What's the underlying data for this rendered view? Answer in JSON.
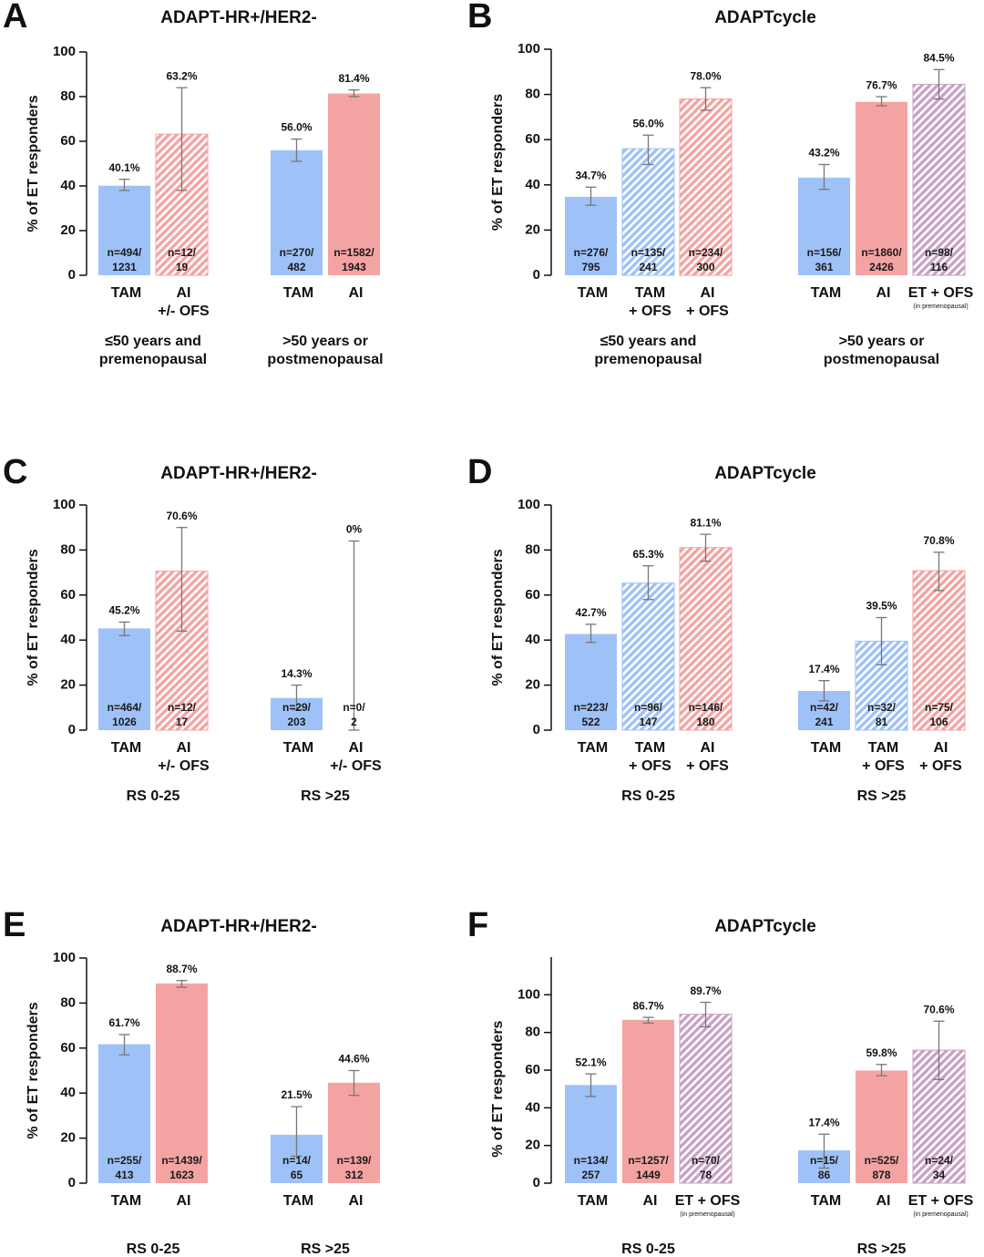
{
  "chart_data": [
    {
      "type": "bar",
      "panel": "A",
      "title": "ADAPT-HR+/HER2-",
      "ylabel": "% of ET responders",
      "ylim": [
        0,
        100
      ],
      "yticks": [
        0,
        20,
        40,
        60,
        80,
        100
      ],
      "groups": [
        {
          "label": [
            "≤50 years and",
            "premenopausal"
          ],
          "categories": [
            [
              "TAM"
            ],
            [
              "AI",
              "+/- OFS"
            ]
          ],
          "values": [
            40.1,
            63.2
          ],
          "value_labels": [
            "40.1%",
            "63.2%"
          ],
          "error_bars": [
            [
              38,
              43
            ],
            [
              38,
              84
            ]
          ],
          "n_labels": [
            [
              "n=494/",
              "1231"
            ],
            [
              "n=12/",
              "19"
            ]
          ],
          "colors": [
            "#9ec2f7",
            "#f4a3a3"
          ],
          "hatched": [
            false,
            true
          ]
        },
        {
          "label": [
            ">50 years or",
            "postmenopausal"
          ],
          "categories": [
            [
              "TAM"
            ],
            [
              "AI"
            ]
          ],
          "values": [
            56.0,
            81.4
          ],
          "value_labels": [
            "56.0%",
            "81.4%"
          ],
          "error_bars": [
            [
              51,
              61
            ],
            [
              80,
              83
            ]
          ],
          "n_labels": [
            [
              "n=270/",
              "482"
            ],
            [
              "n=1582/",
              "1943"
            ]
          ],
          "colors": [
            "#9ec2f7",
            "#f4a3a3"
          ],
          "hatched": [
            false,
            false
          ]
        }
      ]
    },
    {
      "type": "bar",
      "panel": "B",
      "title": "ADAPTcycle",
      "ylabel": "% of ET responders",
      "ylim": [
        0,
        100
      ],
      "yticks": [
        0,
        20,
        40,
        60,
        80,
        100
      ],
      "groups": [
        {
          "label": [
            "≤50 years and",
            "premenopausal"
          ],
          "categories": [
            [
              "TAM"
            ],
            [
              "TAM",
              "+ OFS"
            ],
            [
              "AI",
              "+ OFS"
            ]
          ],
          "values": [
            34.7,
            56.0,
            78.0
          ],
          "value_labels": [
            "34.7%",
            "56.0%",
            "78.0%"
          ],
          "error_bars": [
            [
              31,
              39
            ],
            [
              49,
              62
            ],
            [
              73,
              83
            ]
          ],
          "n_labels": [
            [
              "n=276/",
              "795"
            ],
            [
              "n=135/",
              "241"
            ],
            [
              "n=234/",
              "300"
            ]
          ],
          "colors": [
            "#9ec2f7",
            "#9ec2f7",
            "#f4a3a3"
          ],
          "hatched": [
            false,
            true,
            true
          ]
        },
        {
          "label": [
            ">50 years or",
            "postmenopausal"
          ],
          "categories": [
            [
              "TAM"
            ],
            [
              "AI"
            ],
            [
              "ET + OFS"
            ]
          ],
          "category_notes": [
            null,
            null,
            "(in premenopausal)"
          ],
          "values": [
            43.2,
            76.7,
            84.5
          ],
          "value_labels": [
            "43.2%",
            "76.7%",
            "84.5%"
          ],
          "error_bars": [
            [
              38,
              49
            ],
            [
              75,
              79
            ],
            [
              78,
              91
            ]
          ],
          "n_labels": [
            [
              "n=156/",
              "361"
            ],
            [
              "n=1860/",
              "2426"
            ],
            [
              "n=98/",
              "116"
            ]
          ],
          "colors": [
            "#9ec2f7",
            "#f4a3a3",
            "#c8a2c4"
          ],
          "hatched": [
            false,
            false,
            true
          ]
        }
      ]
    },
    {
      "type": "bar",
      "panel": "C",
      "title": "ADAPT-HR+/HER2-",
      "ylabel": "% of ET responders",
      "ylim": [
        0,
        100
      ],
      "yticks": [
        0,
        20,
        40,
        60,
        80,
        100
      ],
      "groups": [
        {
          "label": [
            "RS 0-25"
          ],
          "categories": [
            [
              "TAM"
            ],
            [
              "AI",
              "+/- OFS"
            ]
          ],
          "values": [
            45.2,
            70.6
          ],
          "value_labels": [
            "45.2%",
            "70.6%"
          ],
          "error_bars": [
            [
              42,
              48
            ],
            [
              44,
              90
            ]
          ],
          "n_labels": [
            [
              "n=464/",
              "1026"
            ],
            [
              "n=12/",
              "17"
            ]
          ],
          "colors": [
            "#9ec2f7",
            "#f4a3a3"
          ],
          "hatched": [
            false,
            true
          ]
        },
        {
          "label": [
            "RS >25"
          ],
          "categories": [
            [
              "TAM"
            ],
            [
              "AI",
              "+/- OFS"
            ]
          ],
          "values": [
            14.3,
            0
          ],
          "value_labels": [
            "14.3%",
            "0%"
          ],
          "error_bars": [
            [
              9,
              20
            ],
            [
              0,
              84
            ]
          ],
          "n_labels": [
            [
              "n=29/",
              "203"
            ],
            [
              "n=0/",
              "2"
            ]
          ],
          "colors": [
            "#9ec2f7",
            "#f4a3a3"
          ],
          "hatched": [
            false,
            true
          ]
        }
      ]
    },
    {
      "type": "bar",
      "panel": "D",
      "title": "ADAPTcycle",
      "ylabel": "% of ET responders",
      "ylim": [
        0,
        100
      ],
      "yticks": [
        0,
        20,
        40,
        60,
        80,
        100
      ],
      "groups": [
        {
          "label": [
            "RS 0-25"
          ],
          "categories": [
            [
              "TAM"
            ],
            [
              "TAM",
              "+ OFS"
            ],
            [
              "AI",
              "+ OFS"
            ]
          ],
          "values": [
            42.7,
            65.3,
            81.1
          ],
          "value_labels": [
            "42.7%",
            "65.3%",
            "81.1%"
          ],
          "error_bars": [
            [
              39,
              47
            ],
            [
              58,
              73
            ],
            [
              75,
              87
            ]
          ],
          "n_labels": [
            [
              "n=223/",
              "522"
            ],
            [
              "n=96/",
              "147"
            ],
            [
              "n=146/",
              "180"
            ]
          ],
          "colors": [
            "#9ec2f7",
            "#9ec2f7",
            "#f4a3a3"
          ],
          "hatched": [
            false,
            true,
            true
          ]
        },
        {
          "label": [
            "RS >25"
          ],
          "categories": [
            [
              "TAM"
            ],
            [
              "TAM",
              "+ OFS"
            ],
            [
              "AI",
              "+ OFS"
            ]
          ],
          "values": [
            17.4,
            39.5,
            70.8
          ],
          "value_labels": [
            "17.4%",
            "39.5%",
            "70.8%"
          ],
          "error_bars": [
            [
              13,
              22
            ],
            [
              29,
              50
            ],
            [
              62,
              79
            ]
          ],
          "n_labels": [
            [
              "n=42/",
              "241"
            ],
            [
              "n=32/",
              "81"
            ],
            [
              "n=75/",
              "106"
            ]
          ],
          "colors": [
            "#9ec2f7",
            "#9ec2f7",
            "#f4a3a3"
          ],
          "hatched": [
            false,
            true,
            true
          ]
        }
      ]
    },
    {
      "type": "bar",
      "panel": "E",
      "title": "ADAPT-HR+/HER2-",
      "ylabel": "% of ET responders",
      "ylim": [
        0,
        100
      ],
      "yticks": [
        0,
        20,
        40,
        60,
        80,
        100
      ],
      "groups": [
        {
          "label": [
            "RS 0-25"
          ],
          "categories": [
            [
              "TAM"
            ],
            [
              "AI"
            ]
          ],
          "values": [
            61.7,
            88.7
          ],
          "value_labels": [
            "61.7%",
            "88.7%"
          ],
          "error_bars": [
            [
              57,
              66
            ],
            [
              87,
              90
            ]
          ],
          "n_labels": [
            [
              "n=255/",
              "413"
            ],
            [
              "n=1439/",
              "1623"
            ]
          ],
          "colors": [
            "#9ec2f7",
            "#f4a3a3"
          ],
          "hatched": [
            false,
            false
          ]
        },
        {
          "label": [
            "RS >25"
          ],
          "categories": [
            [
              "TAM"
            ],
            [
              "AI"
            ]
          ],
          "values": [
            21.5,
            44.6
          ],
          "value_labels": [
            "21.5%",
            "44.6%"
          ],
          "error_bars": [
            [
              12,
              34
            ],
            [
              39,
              50
            ]
          ],
          "n_labels": [
            [
              "n=14/",
              "65"
            ],
            [
              "n=139/",
              "312"
            ]
          ],
          "colors": [
            "#9ec2f7",
            "#f4a3a3"
          ],
          "hatched": [
            false,
            false
          ]
        }
      ]
    },
    {
      "type": "bar",
      "panel": "F",
      "title": "ADAPTcycle",
      "ylabel": "% of ET responders",
      "ylim": [
        0,
        120
      ],
      "yticks": [
        0,
        20,
        40,
        60,
        80,
        100
      ],
      "groups": [
        {
          "label": [
            "RS 0-25"
          ],
          "categories": [
            [
              "TAM"
            ],
            [
              "AI"
            ],
            [
              "ET + OFS"
            ]
          ],
          "category_notes": [
            null,
            null,
            "(in premenopausal)"
          ],
          "values": [
            52.1,
            86.7,
            89.7
          ],
          "value_labels": [
            "52.1%",
            "86.7%",
            "89.7%"
          ],
          "error_bars": [
            [
              46,
              58
            ],
            [
              85,
              88
            ],
            [
              83,
              96
            ]
          ],
          "n_labels": [
            [
              "n=134/",
              "257"
            ],
            [
              "n=1257/",
              "1449"
            ],
            [
              "n=70/",
              "78"
            ]
          ],
          "colors": [
            "#9ec2f7",
            "#f4a3a3",
            "#c8a2c4"
          ],
          "hatched": [
            false,
            false,
            true
          ]
        },
        {
          "label": [
            "RS >25"
          ],
          "categories": [
            [
              "TAM"
            ],
            [
              "AI"
            ],
            [
              "ET + OFS"
            ]
          ],
          "category_notes": [
            null,
            null,
            "(in premenopausal)"
          ],
          "values": [
            17.4,
            59.8,
            70.6
          ],
          "value_labels": [
            "17.4%",
            "59.8%",
            "70.6%"
          ],
          "error_bars": [
            [
              8,
              26
            ],
            [
              57,
              63
            ],
            [
              55,
              86
            ]
          ],
          "n_labels": [
            [
              "n=15/",
              "86"
            ],
            [
              "n=525/",
              "878"
            ],
            [
              "n=24/",
              "34"
            ]
          ],
          "colors": [
            "#9ec2f7",
            "#f4a3a3",
            "#c8a2c4"
          ],
          "hatched": [
            false,
            false,
            true
          ]
        }
      ]
    }
  ]
}
